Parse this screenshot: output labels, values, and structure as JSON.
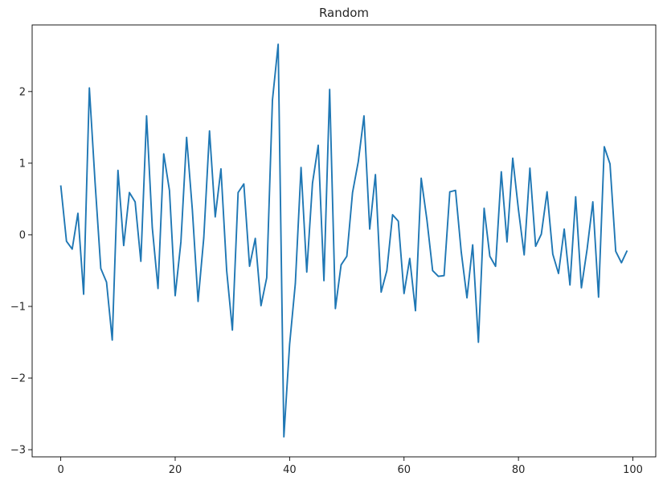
{
  "chart_data": {
    "type": "line",
    "title": "Random",
    "xlabel": "",
    "ylabel": "",
    "xlim": [
      -5,
      104
    ],
    "ylim": [
      -3.1,
      2.93
    ],
    "xticks": [
      0,
      20,
      40,
      60,
      80,
      100
    ],
    "yticks": [
      -3,
      -2,
      -1,
      0,
      1,
      2
    ],
    "xtick_labels": [
      "0",
      "20",
      "40",
      "60",
      "80",
      "100"
    ],
    "ytick_labels": [
      "−3",
      "−2",
      "−1",
      "0",
      "1",
      "2"
    ],
    "grid": false,
    "legend": "none",
    "series": [
      {
        "color": "#1f77b4",
        "x": [
          0,
          1,
          2,
          3,
          4,
          5,
          6,
          7,
          8,
          9,
          10,
          11,
          12,
          13,
          14,
          15,
          16,
          17,
          18,
          19,
          20,
          21,
          22,
          23,
          24,
          25,
          26,
          27,
          28,
          29,
          30,
          31,
          32,
          33,
          34,
          35,
          36,
          37,
          38,
          39,
          40,
          41,
          42,
          43,
          44,
          45,
          46,
          47,
          48,
          49,
          50,
          51,
          52,
          53,
          54,
          55,
          56,
          57,
          58,
          59,
          60,
          61,
          62,
          63,
          64,
          65,
          66,
          67,
          68,
          69,
          70,
          71,
          72,
          73,
          74,
          75,
          76,
          77,
          78,
          79,
          80,
          81,
          82,
          83,
          84,
          85,
          86,
          87,
          88,
          89,
          90,
          91,
          92,
          93,
          94,
          95,
          96,
          97,
          98,
          99
        ],
        "values": [
          0.69,
          -0.09,
          -0.2,
          0.3,
          -0.83,
          2.05,
          0.73,
          -0.47,
          -0.66,
          -1.47,
          0.9,
          -0.15,
          0.59,
          0.46,
          -0.37,
          1.66,
          0.1,
          -0.75,
          1.13,
          0.62,
          -0.85,
          -0.1,
          1.36,
          0.35,
          -0.93,
          -0.04,
          1.45,
          0.25,
          0.92,
          -0.5,
          -1.33,
          0.59,
          0.71,
          -0.44,
          -0.05,
          -0.99,
          -0.6,
          1.88,
          2.66,
          -2.82,
          -1.53,
          -0.68,
          0.94,
          -0.52,
          0.72,
          1.25,
          -0.64,
          2.03,
          -1.03,
          -0.42,
          -0.3,
          0.59,
          1.02,
          1.66,
          0.08,
          0.84,
          -0.8,
          -0.5,
          0.28,
          0.19,
          -0.82,
          -0.33,
          -1.06,
          0.79,
          0.21,
          -0.5,
          -0.58,
          -0.57,
          0.6,
          0.62,
          -0.24,
          -0.88,
          -0.14,
          -1.5,
          0.37,
          -0.3,
          -0.44,
          0.88,
          -0.1,
          1.07,
          0.35,
          -0.28,
          0.93,
          -0.16,
          0.01,
          0.6,
          -0.27,
          -0.54,
          0.08,
          -0.7,
          0.53,
          -0.74,
          -0.2,
          0.46,
          -0.87,
          1.23,
          0.99,
          -0.23,
          -0.39,
          -0.22
        ]
      }
    ]
  }
}
